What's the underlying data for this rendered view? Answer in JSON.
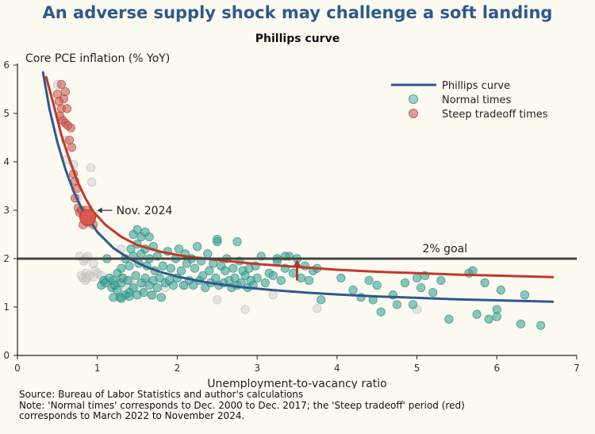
{
  "header": {
    "title": "An adverse supply shock may challenge a soft landing"
  },
  "chart_data": {
    "type": "scatter",
    "title": "Phillips curve",
    "xlabel": "Unemployment-to-vacancy ratio",
    "ylabel": "Core PCE inflation (% YoY)",
    "xlim": [
      0,
      7
    ],
    "ylim": [
      0,
      6
    ],
    "xticks": [
      "0",
      "1",
      "2",
      "3",
      "4",
      "5",
      "6",
      "7"
    ],
    "yticks": [
      "0",
      "1",
      "2",
      "3",
      "4",
      "5",
      "6"
    ],
    "grid": false,
    "legend_position": "top-right",
    "legend": {
      "line": "Phillips curve",
      "normal": "Normal times",
      "steep": "Steep tradeoff times"
    },
    "colors": {
      "normal": "#3aa597",
      "normal_edge": "#1f7e72",
      "steep": "#cf5a52",
      "steep_edge": "#a83a33",
      "gray": "#c9c9c9",
      "curve_blue": "#2d5a8c",
      "curve_red": "#c0392b",
      "goal": "#444444",
      "arrow": "#b03a2e"
    },
    "goal_line": {
      "y": 2,
      "label": "2% goal"
    },
    "highlight": {
      "x": 0.88,
      "y": 2.85,
      "label": "Nov. 2024"
    },
    "arrow": {
      "x": 3.5,
      "y_from": 1.55,
      "y_to": 1.98
    },
    "curves": [
      {
        "name": "Phillips curve",
        "color": "#2d5a8c",
        "x": [
          0.32,
          0.4,
          0.5,
          0.6,
          0.7,
          0.8,
          0.9,
          1.0,
          1.2,
          1.4,
          1.6,
          1.8,
          2.0,
          2.4,
          2.8,
          3.2,
          3.6,
          4.0,
          4.5,
          5.0,
          5.5,
          6.0,
          6.5,
          6.7
        ],
        "y": [
          5.85,
          5.1,
          4.4,
          3.85,
          3.4,
          3.05,
          2.8,
          2.55,
          2.22,
          2.0,
          1.84,
          1.72,
          1.63,
          1.5,
          1.41,
          1.35,
          1.3,
          1.26,
          1.22,
          1.19,
          1.16,
          1.14,
          1.12,
          1.11
        ]
      },
      {
        "color": "#c0392b",
        "x": [
          0.36,
          0.45,
          0.55,
          0.65,
          0.75,
          0.85,
          0.95,
          1.1,
          1.3,
          1.5,
          1.8,
          2.1,
          2.5,
          3.0,
          3.5,
          4.0,
          4.5,
          5.0,
          5.5,
          6.0,
          6.7
        ],
        "y": [
          5.75,
          5.2,
          4.55,
          4.05,
          3.6,
          3.25,
          2.97,
          2.7,
          2.45,
          2.28,
          2.14,
          2.05,
          1.97,
          1.89,
          1.83,
          1.77,
          1.73,
          1.7,
          1.67,
          1.65,
          1.62
        ]
      }
    ],
    "series": [
      {
        "key": "gray",
        "x": [
          0.5,
          0.55,
          0.6,
          0.62,
          0.7,
          0.75,
          0.78,
          0.8,
          0.82,
          0.83,
          0.85,
          0.85,
          0.86,
          0.87,
          0.88,
          0.9,
          0.92,
          0.93,
          0.95,
          0.95,
          0.97,
          1.0,
          1.05,
          1.1,
          1.2,
          1.25,
          1.3,
          1.35,
          1.4,
          1.45,
          1.55,
          1.6,
          1.7,
          1.85,
          2.1,
          2.5,
          2.85,
          3.2,
          3.75,
          5.0,
          1.3
        ],
        "y": [
          5.6,
          4.9,
          4.45,
          4.05,
          3.95,
          3.25,
          2.05,
          1.65,
          1.6,
          1.95,
          2.0,
          1.55,
          1.7,
          1.6,
          2.05,
          1.65,
          3.88,
          3.58,
          1.62,
          1.9,
          1.75,
          1.7,
          1.65,
          1.55,
          1.45,
          1.5,
          1.6,
          1.35,
          1.55,
          1.45,
          1.35,
          1.5,
          1.25,
          1.4,
          1.45,
          1.15,
          0.95,
          1.25,
          0.97,
          0.95,
          2.2
        ]
      },
      {
        "key": "normal",
        "name": "Normal times",
        "x": [
          1.05,
          1.08,
          1.1,
          1.12,
          1.15,
          1.18,
          1.2,
          1.22,
          1.25,
          1.25,
          1.28,
          1.3,
          1.3,
          1.32,
          1.35,
          1.35,
          1.38,
          1.4,
          1.4,
          1.42,
          1.45,
          1.45,
          1.48,
          1.5,
          1.5,
          1.52,
          1.55,
          1.55,
          1.58,
          1.6,
          1.6,
          1.62,
          1.65,
          1.65,
          1.68,
          1.7,
          1.7,
          1.72,
          1.75,
          1.75,
          1.78,
          1.8,
          1.82,
          1.85,
          1.88,
          1.9,
          1.92,
          1.95,
          1.98,
          2.0,
          2.02,
          2.05,
          2.08,
          2.1,
          2.12,
          2.15,
          2.18,
          2.2,
          2.22,
          2.25,
          2.28,
          2.3,
          2.32,
          2.35,
          2.38,
          2.4,
          2.42,
          2.45,
          2.48,
          2.5,
          2.52,
          2.55,
          2.58,
          2.6,
          2.62,
          2.65,
          2.68,
          2.7,
          2.72,
          2.75,
          2.78,
          2.8,
          2.82,
          2.85,
          2.88,
          2.9,
          2.92,
          2.95,
          2.98,
          3.0,
          3.05,
          3.1,
          3.15,
          3.2,
          3.25,
          3.3,
          3.35,
          3.4,
          3.45,
          3.5,
          3.55,
          3.6,
          3.65,
          3.7,
          3.75,
          3.8,
          4.05,
          4.2,
          4.3,
          4.4,
          4.45,
          4.5,
          4.55,
          4.7,
          4.75,
          4.85,
          4.95,
          5.0,
          5.05,
          5.1,
          5.2,
          5.3,
          5.4,
          5.65,
          5.7,
          5.75,
          5.85,
          5.9,
          6.0,
          6.0,
          6.05,
          6.3,
          6.35,
          6.55,
          1.45,
          1.5,
          1.55,
          1.6,
          1.65,
          2.5,
          2.75,
          3.25,
          3.35,
          1.2,
          1.3,
          1.4
        ],
        "y": [
          1.45,
          1.55,
          1.5,
          2.0,
          1.6,
          1.4,
          1.55,
          1.45,
          1.35,
          1.7,
          1.2,
          1.5,
          1.8,
          1.6,
          1.25,
          2.0,
          1.55,
          1.3,
          1.85,
          2.2,
          1.4,
          2.05,
          1.65,
          1.25,
          2.3,
          1.9,
          1.5,
          2.1,
          1.3,
          1.6,
          2.2,
          1.85,
          1.45,
          2.0,
          1.25,
          1.55,
          2.25,
          1.75,
          1.4,
          2.05,
          1.6,
          1.2,
          1.85,
          1.5,
          2.15,
          1.55,
          1.8,
          1.45,
          2.0,
          1.6,
          2.2,
          1.75,
          1.45,
          2.1,
          1.9,
          1.55,
          2.0,
          1.45,
          1.8,
          2.25,
          1.55,
          1.95,
          1.65,
          1.4,
          2.1,
          1.75,
          1.5,
          1.9,
          1.6,
          2.35,
          1.45,
          1.85,
          1.5,
          1.75,
          2.0,
          1.55,
          1.4,
          1.8,
          1.6,
          1.45,
          1.95,
          1.5,
          1.75,
          1.65,
          1.4,
          1.8,
          1.55,
          1.45,
          1.85,
          1.6,
          2.05,
          1.5,
          1.7,
          1.65,
          2.0,
          1.55,
          1.8,
          2.05,
          1.7,
          2.0,
          1.6,
          1.85,
          1.55,
          1.75,
          1.8,
          1.15,
          1.6,
          1.35,
          1.2,
          1.55,
          1.15,
          1.45,
          0.9,
          1.25,
          1.05,
          1.5,
          1.05,
          1.6,
          1.4,
          1.65,
          1.3,
          1.55,
          0.75,
          1.7,
          1.75,
          0.85,
          1.5,
          0.75,
          0.8,
          0.95,
          1.35,
          0.65,
          1.25,
          0.62,
          2.5,
          2.6,
          2.45,
          2.55,
          2.45,
          2.4,
          2.35,
          1.95,
          2.05,
          1.2,
          1.18,
          1.22
        ]
      },
      {
        "key": "steep",
        "name": "Steep tradeoff times",
        "x": [
          0.5,
          0.52,
          0.53,
          0.55,
          0.55,
          0.57,
          0.58,
          0.6,
          0.6,
          0.62,
          0.63,
          0.65,
          0.67,
          0.68,
          0.7,
          0.72,
          0.72,
          0.75,
          0.76,
          0.78,
          0.8,
          0.82,
          0.83,
          0.85,
          0.86,
          0.88,
          0.9,
          0.92,
          0.95
        ],
        "y": [
          5.4,
          5.25,
          4.95,
          5.6,
          5.1,
          4.85,
          5.3,
          5.45,
          4.8,
          5.1,
          4.75,
          4.45,
          4.7,
          4.3,
          3.75,
          3.6,
          3.25,
          3.45,
          3.05,
          2.95,
          3.0,
          2.7,
          2.9,
          2.8,
          3.0,
          2.75,
          2.9,
          2.8,
          2.7
        ]
      }
    ]
  },
  "footer": {
    "source": "Source: Bureau of Labor Statistics and author's calculations",
    "note_line1": "Note: 'Normal times' corresponds to Dec. 2000 to Dec. 2017; the 'Steep tradeoff' period (red)",
    "note_line2": "corresponds to March 2022 to November 2024."
  }
}
